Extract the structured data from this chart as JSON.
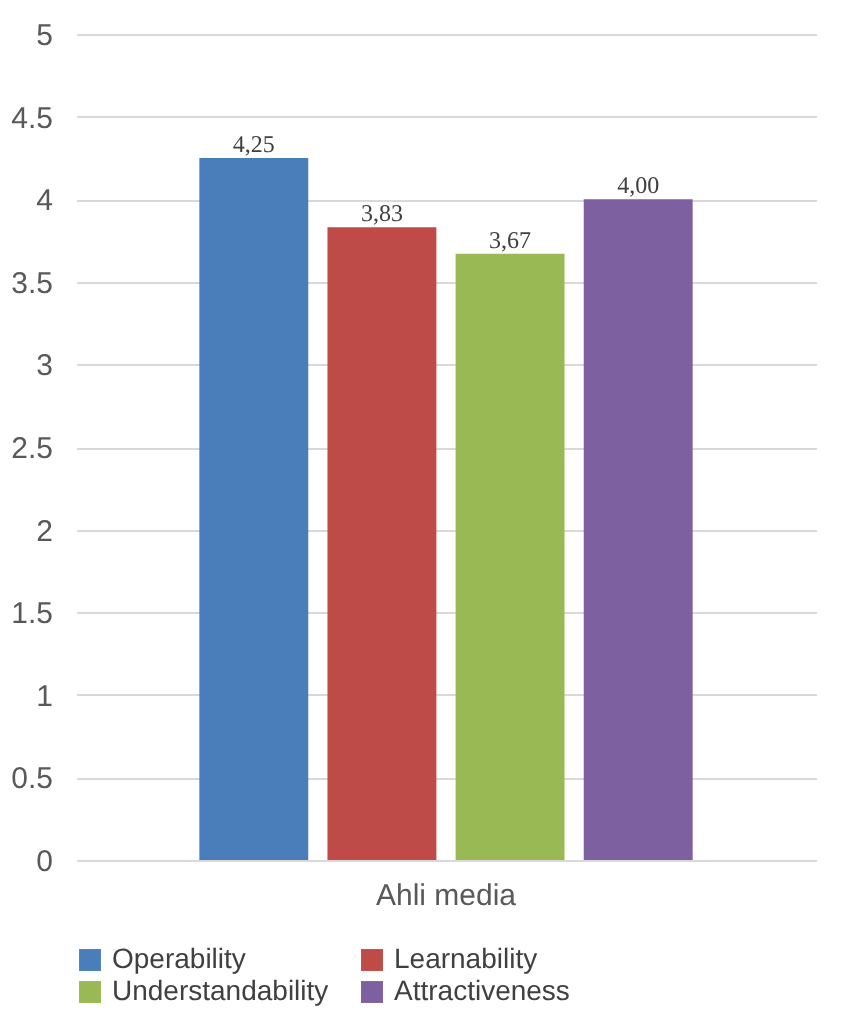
{
  "chart_data": {
    "type": "bar",
    "categories": [
      "Ahli media"
    ],
    "series": [
      {
        "name": "Operability",
        "color": "#4a7ebb",
        "values": [
          4.25
        ],
        "value_labels": [
          "4,25"
        ]
      },
      {
        "name": "Learnability",
        "color": "#be4b48",
        "values": [
          3.83
        ],
        "value_labels": [
          "3,83"
        ]
      },
      {
        "name": "Understandability",
        "color": "#98b954",
        "values": [
          3.67
        ],
        "value_labels": [
          "3,67"
        ]
      },
      {
        "name": "Attractiveness",
        "color": "#7d60a0",
        "values": [
          4.0
        ],
        "value_labels": [
          "4,00"
        ]
      }
    ],
    "ylim": [
      0,
      5
    ],
    "yticks": [
      0,
      0.5,
      1,
      1.5,
      2,
      2.5,
      3,
      3.5,
      4,
      4.5,
      5
    ],
    "grid": "y",
    "legend": "bottom"
  }
}
